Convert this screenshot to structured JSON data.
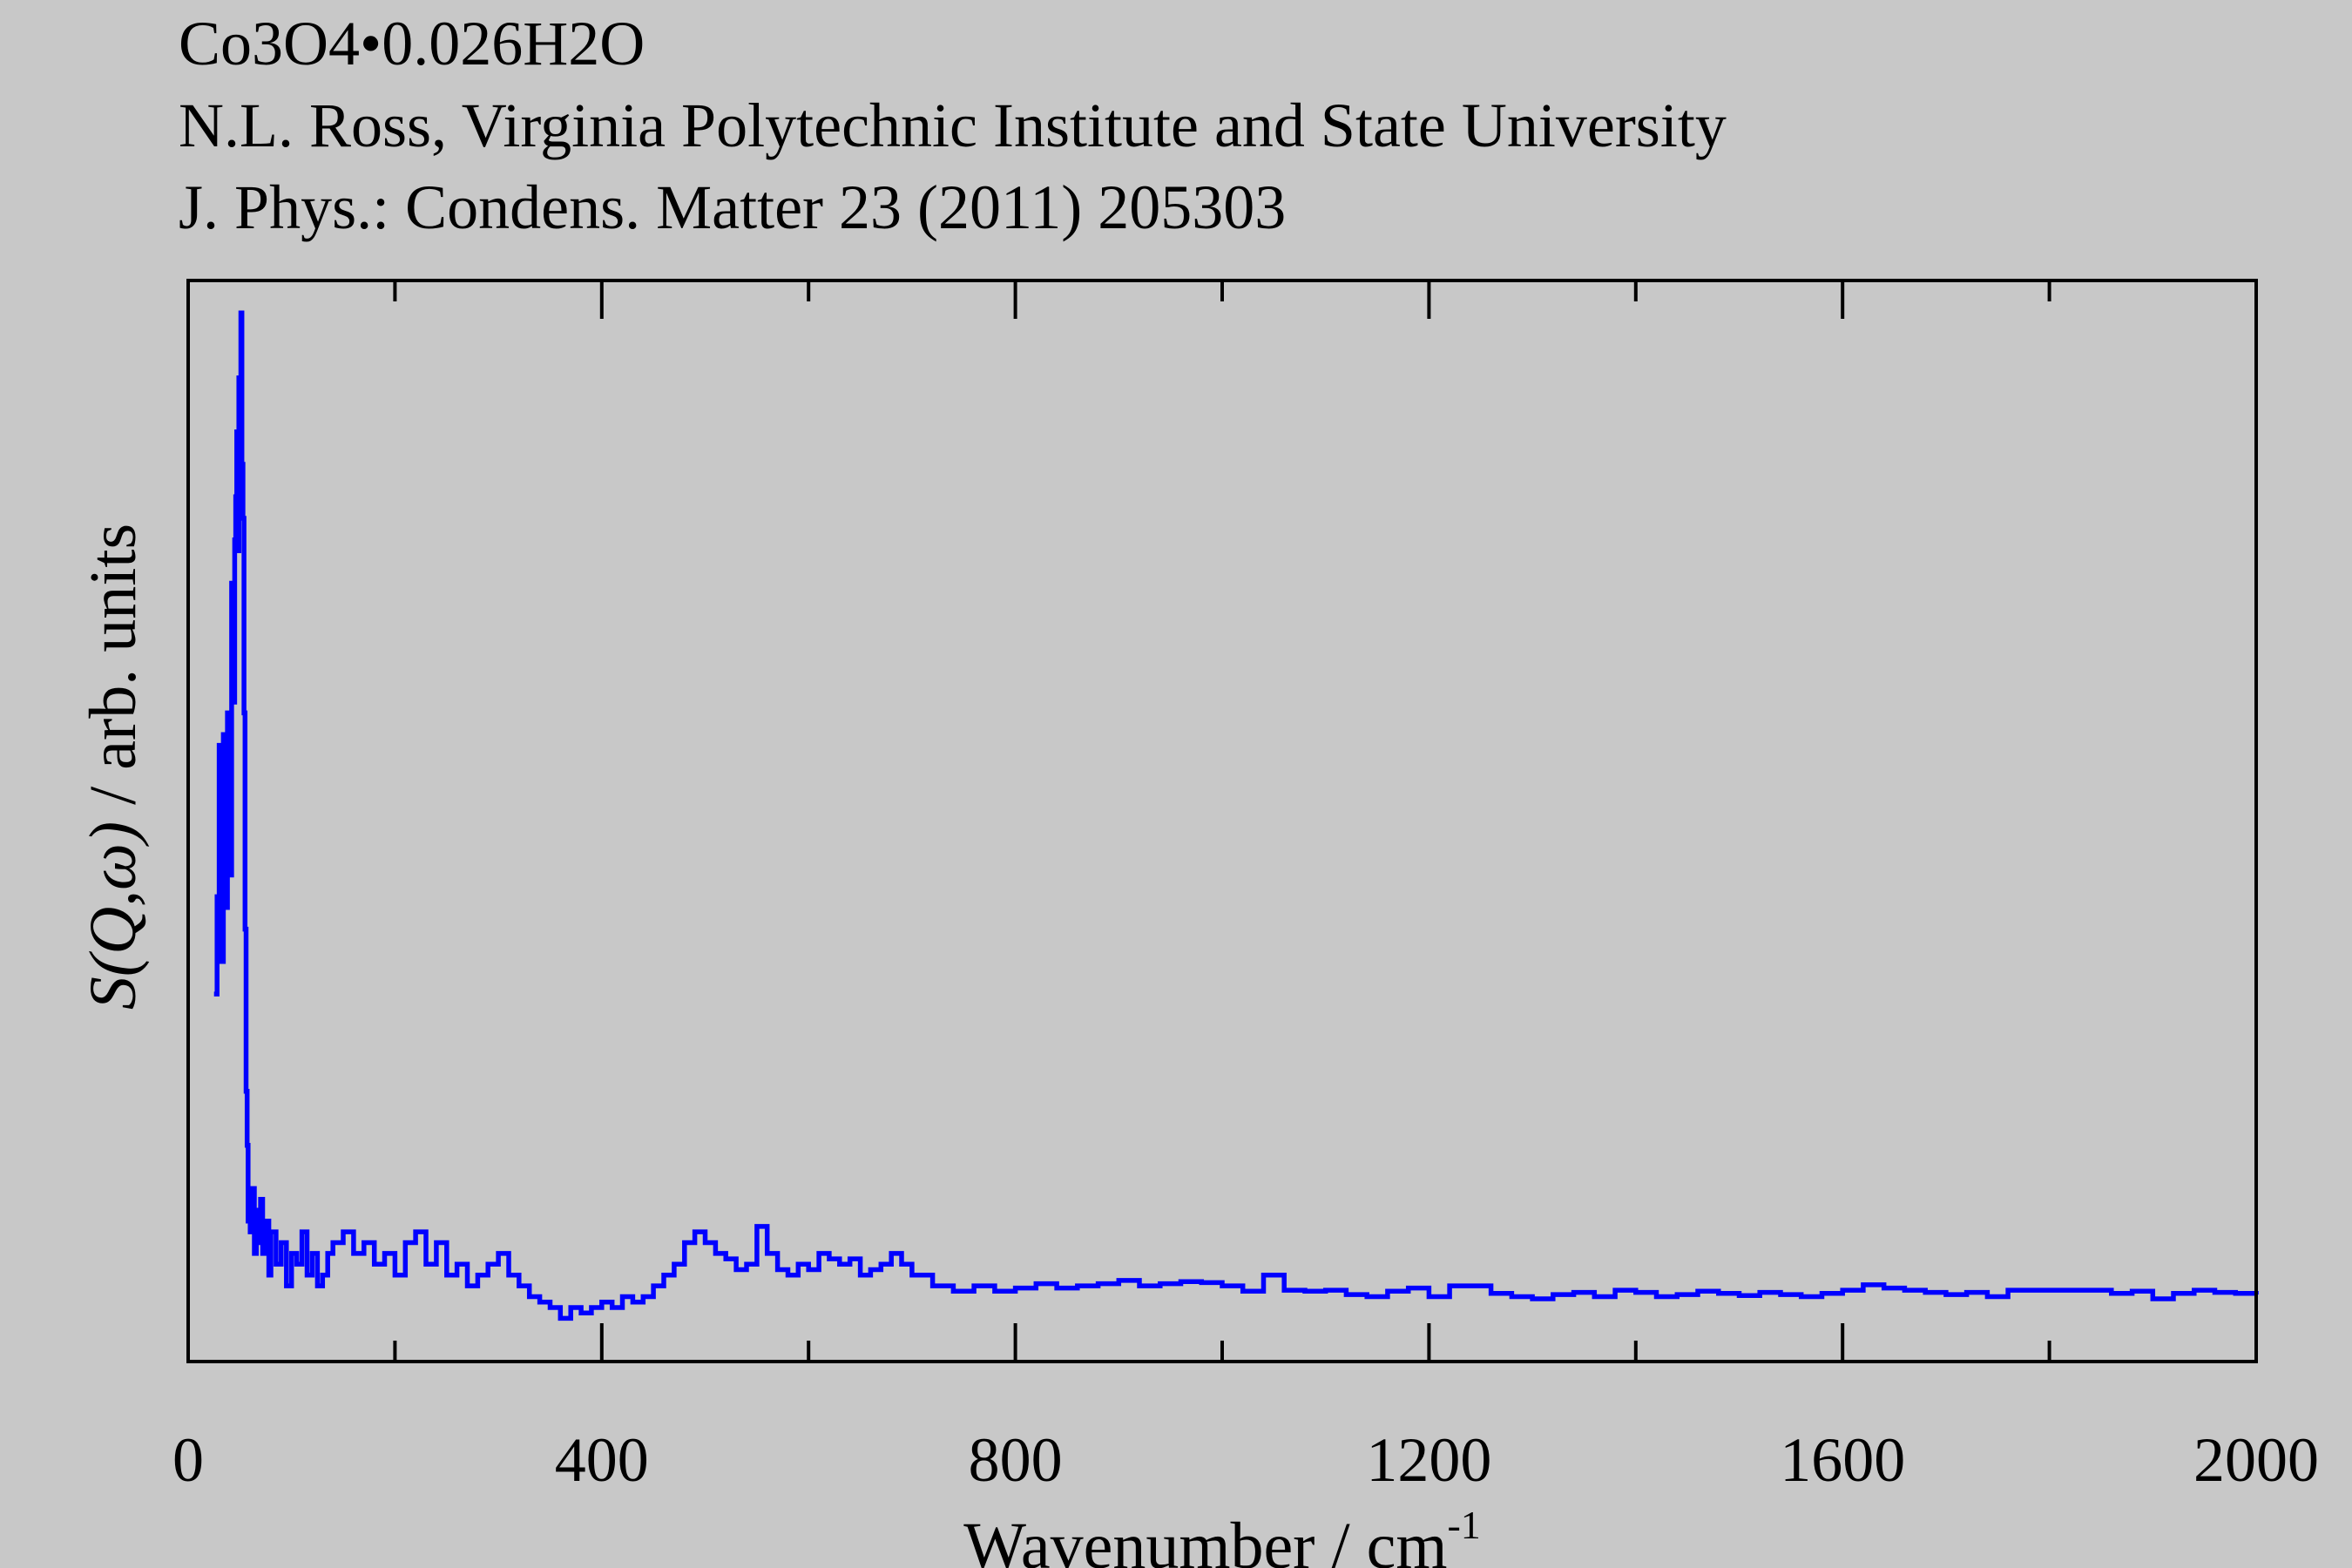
{
  "header": {
    "title": "Co3O4•0.026H2O",
    "author": "N.L. Ross, Virginia Polytechnic Institute and State University",
    "citation": "J. Phys.: Condens. Matter 23 (2011) 205303"
  },
  "colors": {
    "background": "#c8c8c8",
    "series": "#0000ff",
    "axis": "#000000"
  },
  "chart_data": {
    "type": "line",
    "style": "step",
    "xlabel": "Wavenumber / cm",
    "xlabel_superscript": "-1",
    "ylabel_italic": "S(Q,ω)",
    "ylabel_plain": " / arb. units",
    "xlim": [
      0,
      2000
    ],
    "ylim": [
      0,
      1
    ],
    "x_ticks": [
      0,
      400,
      800,
      1200,
      1600,
      2000
    ],
    "x_minor_ticks": [
      200,
      600,
      1000,
      1400,
      1800
    ],
    "y_tick_labels": false,
    "grid": false,
    "legend": "none",
    "series": [
      {
        "x": [
          25,
          28,
          30,
          32,
          34,
          36,
          38,
          40,
          42,
          44,
          45,
          46,
          47,
          48,
          49,
          50,
          51,
          52,
          53,
          54,
          55,
          56,
          57,
          58,
          60,
          62,
          64,
          66,
          68,
          70,
          72,
          75,
          78,
          80,
          85,
          90,
          95,
          100,
          105,
          110,
          115,
          120,
          125,
          130,
          135,
          140,
          150,
          160,
          170,
          180,
          190,
          200,
          210,
          220,
          230,
          240,
          250,
          260,
          270,
          280,
          290,
          300,
          310,
          320,
          330,
          340,
          350,
          360,
          370,
          380,
          390,
          400,
          410,
          420,
          430,
          440,
          450,
          460,
          470,
          480,
          490,
          500,
          510,
          520,
          530,
          540,
          550,
          560,
          570,
          580,
          590,
          600,
          610,
          620,
          630,
          640,
          650,
          660,
          670,
          680,
          690,
          700,
          720,
          740,
          760,
          780,
          800,
          820,
          840,
          860,
          880,
          900,
          920,
          940,
          960,
          980,
          1000,
          1020,
          1040,
          1060,
          1080,
          1100,
          1120,
          1140,
          1160,
          1180,
          1200,
          1220,
          1240,
          1260,
          1280,
          1300,
          1320,
          1340,
          1360,
          1380,
          1400,
          1420,
          1440,
          1460,
          1480,
          1500,
          1520,
          1540,
          1560,
          1580,
          1600,
          1620,
          1640,
          1660,
          1680,
          1700,
          1720,
          1740,
          1760,
          1780,
          1800,
          1820,
          1840,
          1860,
          1880,
          1900,
          1920,
          1940,
          1960,
          1980,
          2000
        ],
        "y": [
          0.34,
          0.43,
          0.57,
          0.37,
          0.58,
          0.42,
          0.6,
          0.45,
          0.72,
          0.61,
          0.76,
          0.8,
          0.86,
          0.75,
          0.91,
          0.87,
          0.97,
          0.83,
          0.78,
          0.6,
          0.4,
          0.25,
          0.2,
          0.13,
          0.12,
          0.16,
          0.1,
          0.14,
          0.11,
          0.15,
          0.1,
          0.13,
          0.08,
          0.12,
          0.09,
          0.11,
          0.07,
          0.1,
          0.09,
          0.12,
          0.08,
          0.1,
          0.07,
          0.08,
          0.1,
          0.11,
          0.12,
          0.1,
          0.11,
          0.09,
          0.1,
          0.08,
          0.11,
          0.12,
          0.09,
          0.11,
          0.08,
          0.09,
          0.07,
          0.08,
          0.09,
          0.1,
          0.08,
          0.07,
          0.06,
          0.055,
          0.05,
          0.04,
          0.05,
          0.045,
          0.05,
          0.055,
          0.05,
          0.06,
          0.055,
          0.06,
          0.07,
          0.08,
          0.09,
          0.11,
          0.12,
          0.11,
          0.1,
          0.095,
          0.085,
          0.09,
          0.125,
          0.1,
          0.085,
          0.08,
          0.09,
          0.085,
          0.1,
          0.095,
          0.09,
          0.095,
          0.08,
          0.085,
          0.09,
          0.1,
          0.09,
          0.08,
          0.07,
          0.065,
          0.07,
          0.065,
          0.068,
          0.072,
          0.068,
          0.07,
          0.072,
          0.075,
          0.07,
          0.072,
          0.074,
          0.073,
          0.07,
          0.065,
          0.08,
          0.066,
          0.065,
          0.066,
          0.062,
          0.06,
          0.065,
          0.068,
          0.06,
          0.07,
          0.07,
          0.063,
          0.06,
          0.058,
          0.062,
          0.064,
          0.06,
          0.066,
          0.064,
          0.06,
          0.062,
          0.065,
          0.063,
          0.061,
          0.064,
          0.062,
          0.06,
          0.063,
          0.066,
          0.071,
          0.068,
          0.066,
          0.064,
          0.062,
          0.064,
          0.06,
          0.066,
          0.066,
          0.066,
          0.066,
          0.066,
          0.063,
          0.065,
          0.058,
          0.063,
          0.066,
          0.064,
          0.063,
          0.062
        ]
      }
    ]
  }
}
